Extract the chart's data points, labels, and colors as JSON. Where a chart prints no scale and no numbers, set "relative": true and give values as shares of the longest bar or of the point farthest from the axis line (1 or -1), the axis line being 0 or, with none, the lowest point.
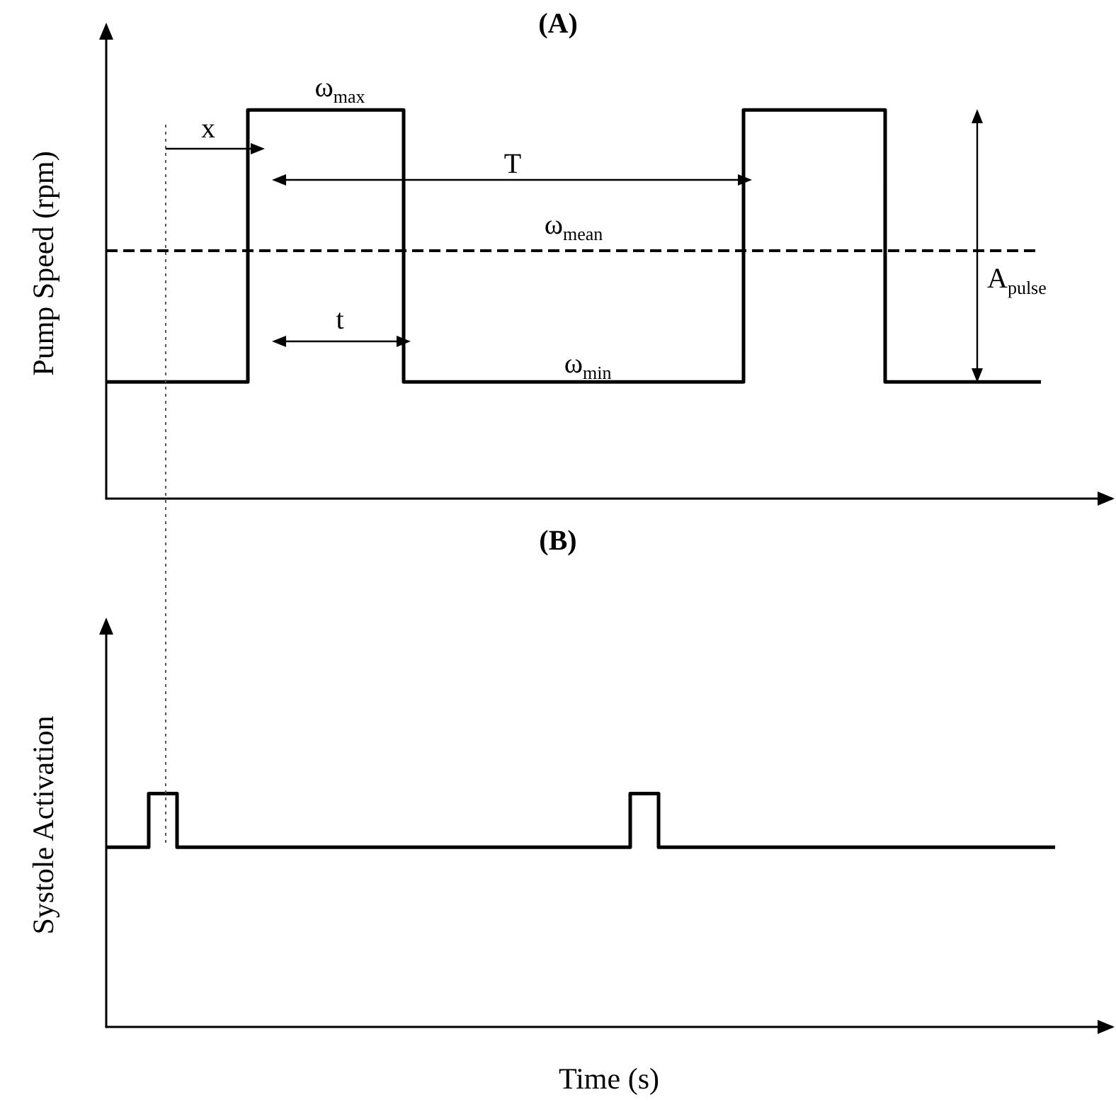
{
  "chart_data": [
    {
      "type": "step",
      "title": "(A)",
      "ylabel": "Pump Speed (rpm)",
      "relative": true,
      "color": "#000000",
      "marker": "none",
      "categories": [
        null,
        null,
        null,
        null,
        null,
        null,
        null,
        null,
        null,
        null,
        null,
        null,
        null,
        null,
        null,
        null,
        null,
        null,
        null,
        null,
        null,
        null,
        null,
        null,
        null,
        null,
        null,
        null,
        null,
        null,
        null,
        null,
        null,
        null,
        null,
        null,
        null,
        null,
        null,
        null,
        null,
        null,
        null,
        null,
        null,
        null,
        null,
        null,
        null,
        null,
        null,
        null,
        null,
        null,
        null,
        null,
        null,
        null,
        null,
        null,
        null,
        null,
        null,
        null,
        null,
        null,
        null,
        null,
        null,
        null,
        null,
        null
      ],
      "values": [
        0.3,
        0.3,
        0.3,
        0.3,
        0.3,
        0.3,
        0.3,
        0.3,
        0.3,
        0.3,
        0.3,
        1,
        1,
        1,
        1,
        1,
        1,
        1,
        1,
        1,
        1,
        1,
        0.3,
        0.3,
        0.3,
        0.3,
        0.3,
        0.3,
        0.3,
        0.3,
        0.3,
        0.3,
        0.3,
        0.3,
        0.3,
        0.3,
        0.3,
        0.3,
        0.3,
        0.3,
        0.3,
        0.3,
        0.3,
        0.3,
        0.3,
        0.3,
        1,
        1,
        1,
        1,
        1,
        1,
        1,
        1,
        1,
        1,
        0.3,
        0.3,
        0.3,
        0.3,
        0.3,
        0.3,
        0.3,
        0.3,
        0.3,
        0.3,
        0.3,
        null,
        null,
        null,
        null,
        null
      ],
      "ref_lines": [
        {
          "axis": "y",
          "value": 0.64,
          "label": "ω$_{mean}$",
          "line_style": "dashed",
          "color": "#000000"
        }
      ],
      "annotations": [
        "ω$_{max}$",
        "x",
        "T",
        "t",
        "ω$_{min}$",
        "A$_{pulse}$"
      ]
    },
    {
      "type": "step",
      "title": "(B)",
      "xlabel": "Time (s)",
      "ylabel": "Systole Activation",
      "relative": true,
      "color": "#000000",
      "marker": "none",
      "categories": [
        null,
        null,
        null,
        null,
        null,
        null,
        null,
        null,
        null,
        null,
        null,
        null,
        null,
        null,
        null,
        null,
        null,
        null,
        null,
        null,
        null,
        null,
        null,
        null,
        null,
        null,
        null,
        null,
        null,
        null,
        null,
        null,
        null,
        null,
        null,
        null,
        null,
        null,
        null,
        null,
        null,
        null,
        null,
        null,
        null,
        null,
        null,
        null,
        null,
        null,
        null,
        null,
        null,
        null,
        null,
        null,
        null,
        null,
        null,
        null,
        null,
        null,
        null,
        null,
        null,
        null,
        null,
        null,
        null,
        null,
        null,
        null
      ],
      "values": [
        0.77,
        0.77,
        0.77,
        0.77,
        1,
        1,
        0.77,
        0.77,
        0.77,
        0.77,
        0.77,
        0.77,
        0.77,
        0.77,
        0.77,
        0.77,
        0.77,
        0.77,
        0.77,
        0.77,
        0.77,
        0.77,
        0.77,
        0.77,
        0.77,
        0.77,
        0.77,
        0.77,
        0.77,
        0.77,
        0.77,
        0.77,
        0.77,
        0.77,
        0.77,
        0.77,
        0.77,
        0.77,
        1,
        1,
        0.77,
        0.77,
        0.77,
        0.77,
        0.77,
        0.77,
        0.77,
        0.77,
        0.77,
        0.77,
        0.77,
        0.77,
        0.77,
        0.77,
        0.77,
        0.77,
        0.77,
        0.77,
        0.77,
        0.77,
        0.77,
        0.77,
        0.77,
        0.77,
        0.77,
        0.77,
        0.77,
        0.77,
        null,
        null,
        null,
        null
      ]
    }
  ]
}
